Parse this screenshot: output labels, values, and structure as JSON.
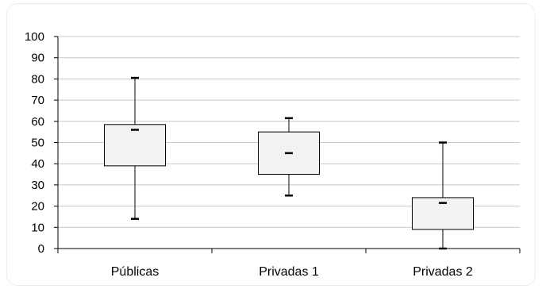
{
  "chart_data": {
    "type": "box",
    "title": "",
    "xlabel": "",
    "ylabel": "",
    "ylim": [
      0,
      100
    ],
    "yticks": [
      0,
      10,
      20,
      30,
      40,
      50,
      60,
      70,
      80,
      90,
      100
    ],
    "grid": true,
    "categories": [
      "Públicas",
      "Privadas 1",
      "Privadas 2"
    ],
    "boxes": [
      {
        "category": "Públicas",
        "min": 14,
        "q1": 39,
        "q3": 58.5,
        "max": 80.5,
        "marker": 56
      },
      {
        "category": "Privadas 1",
        "min": 25,
        "q1": 35,
        "q3": 55,
        "max": 61.5,
        "marker": 45
      },
      {
        "category": "Privadas 2",
        "min": 0,
        "q1": 9,
        "q3": 24,
        "max": 50,
        "marker": 21.5
      }
    ],
    "colors": {
      "box_fill": "#f2f2f2",
      "stroke": "#000000",
      "grid": "#c8c8c8"
    }
  }
}
